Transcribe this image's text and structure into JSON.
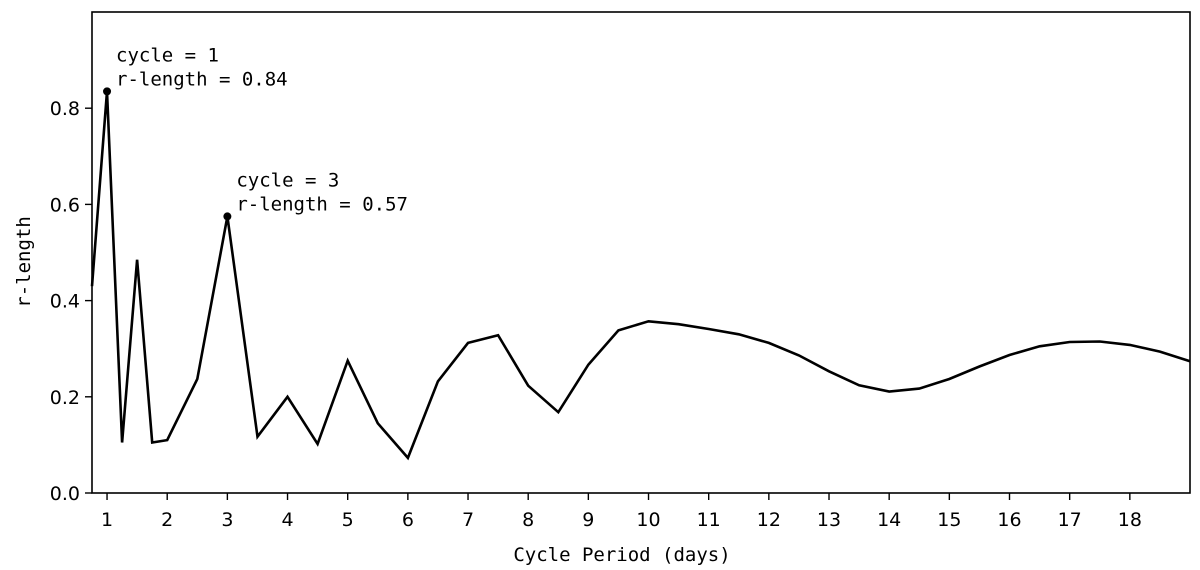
{
  "chart_data": {
    "type": "line",
    "xlabel": "Cycle Period (days)",
    "ylabel": "r-length",
    "xlim": [
      0.75,
      19
    ],
    "ylim": [
      0,
      1.0
    ],
    "x_ticks": [
      1,
      2,
      3,
      4,
      5,
      6,
      7,
      8,
      9,
      10,
      11,
      12,
      13,
      14,
      15,
      16,
      17,
      18
    ],
    "y_ticks": [
      0.0,
      0.2,
      0.4,
      0.6,
      0.8
    ],
    "y_tick_labels": [
      "0.0",
      "0.2",
      "0.4",
      "0.6",
      "0.8"
    ],
    "grid": false,
    "line_color": "#000000",
    "series": [
      {
        "x": [
          0.75,
          1,
          1.25,
          1.5,
          1.75,
          2,
          2.5,
          3,
          3.5,
          4,
          4.5,
          5,
          5.5,
          6,
          6.5,
          7,
          7.5,
          8,
          8.5,
          9,
          9.5,
          10,
          10.5,
          11,
          11.5,
          12,
          12.5,
          13,
          13.5,
          14,
          14.5,
          15,
          15.5,
          16,
          16.5,
          17,
          17.5,
          18,
          18.5,
          19
        ],
        "values": [
          0.43,
          0.835,
          0.105,
          0.485,
          0.105,
          0.11,
          0.237,
          0.575,
          0.117,
          0.2,
          0.102,
          0.275,
          0.145,
          0.073,
          0.232,
          0.312,
          0.328,
          0.223,
          0.168,
          0.267,
          0.338,
          0.357,
          0.351,
          0.341,
          0.33,
          0.312,
          0.286,
          0.253,
          0.224,
          0.211,
          0.217,
          0.237,
          0.263,
          0.287,
          0.305,
          0.314,
          0.315,
          0.308,
          0.294,
          0.274
        ]
      }
    ],
    "annotations": [
      {
        "x": 1,
        "y": 0.835,
        "line1": "cycle = 1",
        "line2": "r-length = 0.84"
      },
      {
        "x": 3,
        "y": 0.575,
        "line1": "cycle = 3",
        "line2": "r-length = 0.57"
      }
    ]
  }
}
